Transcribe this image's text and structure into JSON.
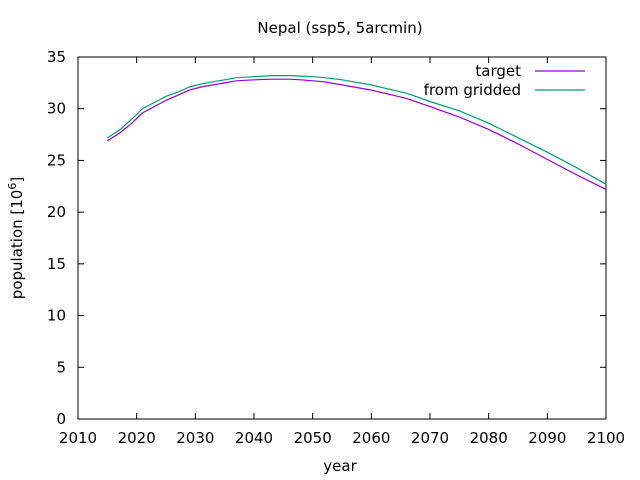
{
  "chart_data": {
    "type": "line",
    "title": "Nepal (ssp5, 5arcmin)",
    "xlabel": "year",
    "ylabel_prefix": "population [10",
    "ylabel_exp": "6",
    "ylabel_suffix": "]",
    "xlim": [
      2010,
      2100
    ],
    "ylim": [
      0,
      35
    ],
    "xticks": [
      2010,
      2020,
      2030,
      2040,
      2050,
      2060,
      2070,
      2080,
      2090,
      2100
    ],
    "yticks": [
      0,
      5,
      10,
      15,
      20,
      25,
      30,
      35
    ],
    "grid": false,
    "legend_position": "top-right",
    "series": [
      {
        "name": "target",
        "color": "#9400d3",
        "x": [
          2015,
          2017,
          2019,
          2021,
          2023,
          2025,
          2027,
          2029,
          2031,
          2033,
          2035,
          2037,
          2040,
          2043,
          2046,
          2048,
          2050,
          2052,
          2055,
          2058,
          2060,
          2063,
          2066,
          2070,
          2075,
          2080,
          2085,
          2090,
          2095,
          2100
        ],
        "y": [
          26.9,
          27.6,
          28.5,
          29.6,
          30.2,
          30.8,
          31.3,
          31.8,
          32.1,
          32.3,
          32.5,
          32.7,
          32.8,
          32.85,
          32.85,
          32.8,
          32.7,
          32.6,
          32.3,
          32.0,
          31.8,
          31.4,
          31.0,
          30.2,
          29.2,
          28.0,
          26.6,
          25.1,
          23.6,
          22.2
        ]
      },
      {
        "name": "from gridded",
        "color": "#009e73",
        "x": [
          2015,
          2017,
          2019,
          2021,
          2023,
          2025,
          2027,
          2029,
          2031,
          2033,
          2035,
          2037,
          2040,
          2043,
          2046,
          2048,
          2050,
          2052,
          2055,
          2058,
          2060,
          2063,
          2066,
          2070,
          2075,
          2080,
          2085,
          2090,
          2095,
          2100
        ],
        "y": [
          27.2,
          27.9,
          28.9,
          30.0,
          30.6,
          31.2,
          31.6,
          32.1,
          32.4,
          32.6,
          32.8,
          33.0,
          33.1,
          33.2,
          33.2,
          33.15,
          33.1,
          33.0,
          32.8,
          32.5,
          32.3,
          31.9,
          31.5,
          30.7,
          29.8,
          28.6,
          27.2,
          25.8,
          24.3,
          22.7
        ]
      }
    ]
  }
}
